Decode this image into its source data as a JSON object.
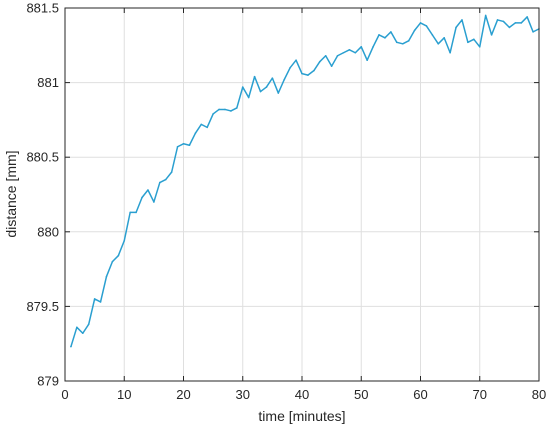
{
  "chart_data": {
    "type": "line",
    "xlabel": "time [minutes]",
    "ylabel": "distance [mm]",
    "xlim": [
      0,
      80
    ],
    "ylim": [
      879,
      881.5
    ],
    "xticks": [
      0,
      10,
      20,
      30,
      40,
      50,
      60,
      70,
      80
    ],
    "xtick_labels": [
      "0",
      "10",
      "20",
      "30",
      "40",
      "50",
      "60",
      "70",
      "80"
    ],
    "yticks": [
      879,
      879.5,
      880,
      880.5,
      881,
      881.5
    ],
    "ytick_labels": [
      "879",
      "879.5",
      "880",
      "880.5",
      "881",
      "881.5"
    ],
    "grid": true,
    "series": [
      {
        "color": "#2a9fd0",
        "x": [
          1,
          2,
          3,
          4,
          5,
          6,
          7,
          8,
          9,
          10,
          11,
          12,
          13,
          14,
          15,
          16,
          17,
          18,
          19,
          20,
          21,
          22,
          23,
          24,
          25,
          26,
          27,
          28,
          29,
          30,
          31,
          32,
          33,
          34,
          35,
          36,
          37,
          38,
          39,
          40,
          41,
          42,
          43,
          44,
          45,
          46,
          47,
          48,
          49,
          50,
          51,
          52,
          53,
          54,
          55,
          56,
          57,
          58,
          59,
          60,
          61,
          62,
          63,
          64,
          65,
          66,
          67,
          68,
          69,
          70,
          71,
          72,
          73,
          74,
          75,
          76,
          77,
          78,
          79,
          80
        ],
        "y": [
          879.23,
          879.36,
          879.32,
          879.38,
          879.55,
          879.53,
          879.7,
          879.8,
          879.84,
          879.94,
          880.13,
          880.13,
          880.23,
          880.28,
          880.2,
          880.33,
          880.35,
          880.4,
          880.57,
          880.59,
          880.58,
          880.66,
          880.72,
          880.7,
          880.79,
          880.82,
          880.82,
          880.81,
          880.83,
          880.97,
          880.9,
          881.04,
          880.94,
          880.97,
          881.03,
          880.93,
          881.02,
          881.1,
          881.15,
          881.06,
          881.05,
          881.08,
          881.14,
          881.18,
          881.11,
          881.18,
          881.2,
          881.22,
          881.2,
          881.24,
          881.15,
          881.24,
          881.32,
          881.3,
          881.34,
          881.27,
          881.26,
          881.28,
          881.35,
          881.4,
          881.38,
          881.32,
          881.26,
          881.3,
          881.2,
          881.37,
          881.42,
          881.27,
          881.29,
          881.24,
          881.45,
          881.32,
          881.42,
          881.41,
          881.37,
          881.4,
          881.4,
          881.44,
          881.34,
          881.36
        ]
      }
    ]
  }
}
